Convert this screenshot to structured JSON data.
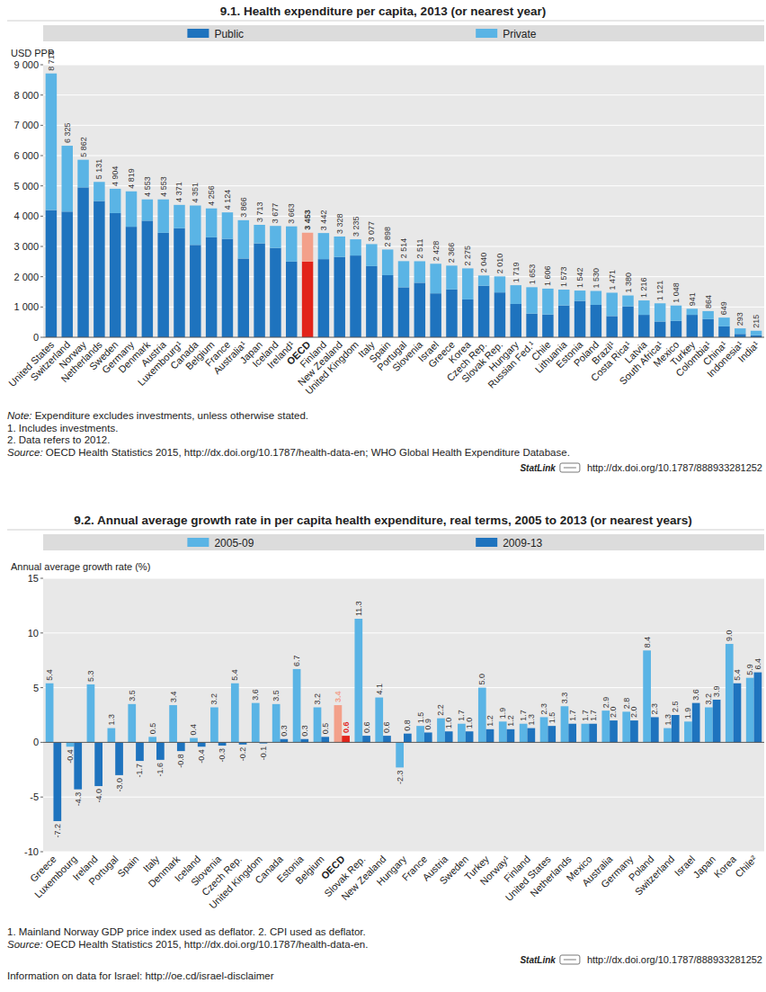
{
  "chart_data": [
    {
      "type": "bar",
      "title": "9.1. Health expenditure per capita, 2013 (or nearest year)",
      "y_label": "USD PPP",
      "categories": [
        "United States",
        "Switzerland",
        "Norway",
        "Netherlands",
        "Sweden",
        "Germany",
        "Denmark",
        "Austria",
        "Luxembourg¹",
        "Canada",
        "Belgium",
        "France",
        "Australia¹",
        "Japan",
        "Iceland",
        "Ireland¹",
        "OECD",
        "Finland",
        "New Zealand",
        "United Kingdom",
        "Italy",
        "Spain",
        "Portugal",
        "Slovenia",
        "Israel",
        "Greece",
        "Korea",
        "Czech Rep.",
        "Slovak Rep.",
        "Hungary",
        "Russian Fed.¹",
        "Chile",
        "Lithuania",
        "Estonia",
        "Poland",
        "Brazil¹",
        "Costa Rica¹",
        "Latvia",
        "South Africa¹",
        "Mexico",
        "Turkey",
        "Colombia¹",
        "China¹",
        "Indonesia¹",
        "India¹"
      ],
      "series": [
        {
          "name": "Public",
          "color": "#1e73be",
          "colors": [
            "#1e73be",
            "#1e73be",
            "#1e73be",
            "#1e73be",
            "#1e73be",
            "#1e73be",
            "#1e73be",
            "#1e73be",
            "#1e73be",
            "#1e73be",
            "#1e73be",
            "#1e73be",
            "#1e73be",
            "#1e73be",
            "#1e73be",
            "#1e73be",
            "#e2231a",
            "#1e73be",
            "#1e73be",
            "#1e73be",
            "#1e73be",
            "#1e73be",
            "#1e73be",
            "#1e73be",
            "#1e73be",
            "#1e73be",
            "#1e73be",
            "#1e73be",
            "#1e73be",
            "#1e73be",
            "#1e73be",
            "#1e73be",
            "#1e73be",
            "#1e73be",
            "#1e73be",
            "#1e73be",
            "#1e73be",
            "#1e73be",
            "#1e73be",
            "#1e73be",
            "#1e73be",
            "#1e73be",
            "#1e73be",
            "#1e73be",
            "#1e73be"
          ],
          "values": [
            4200,
            4150,
            4950,
            4500,
            4100,
            3650,
            3850,
            3450,
            3600,
            3050,
            3300,
            3250,
            2600,
            3100,
            2950,
            2500,
            2500,
            2580,
            2650,
            2700,
            2350,
            2050,
            1650,
            1800,
            1450,
            1580,
            1250,
            1700,
            1480,
            1100,
            780,
            750,
            1050,
            1200,
            1070,
            700,
            1020,
            740,
            520,
            540,
            740,
            600,
            360,
            110,
            65
          ]
        },
        {
          "name": "Private",
          "color": "#5ab4e5",
          "colors": [
            "#5ab4e5",
            "#5ab4e5",
            "#5ab4e5",
            "#5ab4e5",
            "#5ab4e5",
            "#5ab4e5",
            "#5ab4e5",
            "#5ab4e5",
            "#5ab4e5",
            "#5ab4e5",
            "#5ab4e5",
            "#5ab4e5",
            "#5ab4e5",
            "#5ab4e5",
            "#5ab4e5",
            "#5ab4e5",
            "#f3a08a",
            "#5ab4e5",
            "#5ab4e5",
            "#5ab4e5",
            "#5ab4e5",
            "#5ab4e5",
            "#5ab4e5",
            "#5ab4e5",
            "#5ab4e5",
            "#5ab4e5",
            "#5ab4e5",
            "#5ab4e5",
            "#5ab4e5",
            "#5ab4e5",
            "#5ab4e5",
            "#5ab4e5",
            "#5ab4e5",
            "#5ab4e5",
            "#5ab4e5",
            "#5ab4e5",
            "#5ab4e5",
            "#5ab4e5",
            "#5ab4e5",
            "#5ab4e5",
            "#5ab4e5",
            "#5ab4e5",
            "#5ab4e5",
            "#5ab4e5",
            "#5ab4e5"
          ],
          "values": [
            4513,
            2175,
            912,
            631,
            804,
            1169,
            703,
            1103,
            771,
            1301,
            956,
            874,
            1266,
            613,
            727,
            1163,
            953,
            862,
            678,
            535,
            727,
            848,
            864,
            711,
            978,
            786,
            1025,
            340,
            530,
            619,
            873,
            856,
            523,
            342,
            460,
            771,
            360,
            476,
            601,
            508,
            201,
            264,
            289,
            183,
            150
          ]
        }
      ],
      "totals": [
        8713,
        6325,
        5862,
        5131,
        4904,
        4819,
        4553,
        4553,
        4371,
        4351,
        4256,
        4124,
        3866,
        3713,
        3677,
        3663,
        3453,
        3442,
        3328,
        3235,
        3077,
        2898,
        2514,
        2511,
        2428,
        2366,
        2275,
        2040,
        2010,
        1719,
        1653,
        1606,
        1573,
        1542,
        1530,
        1471,
        1380,
        1216,
        1121,
        1048,
        941,
        864,
        649,
        293,
        215
      ],
      "total_labels": [
        "8 713",
        "6 325",
        "5 862",
        "5 131",
        "4 904",
        "4 819",
        "4 553",
        "4 553",
        "4 371",
        "4 351",
        "4 256",
        "4 124",
        "3 866",
        "3 713",
        "3 677",
        "3 663",
        "3 453",
        "3 442",
        "3 328",
        "3 235",
        "3 077",
        "2 898",
        "2 514",
        "2 511",
        "2 428",
        "2 366",
        "2 275",
        "2 040",
        "2 010",
        "1 719",
        "1 653",
        "1 606",
        "1 573",
        "1 542",
        "1 530",
        "1 471",
        "1 380",
        "1 216",
        "1 121",
        "1 048",
        "941",
        "864",
        "649",
        "293",
        "215"
      ],
      "stacked": true,
      "grid": true,
      "legend": "top",
      "ylim": [
        0,
        9000
      ],
      "yticks": [
        0,
        {
          "value": 1000,
          "label": "1 000"
        },
        {
          "value": 2000,
          "label": "2 000"
        },
        {
          "value": 3000,
          "label": "3 000"
        },
        {
          "value": 4000,
          "label": "4 000"
        },
        {
          "value": 5000,
          "label": "5 000"
        },
        {
          "value": 6000,
          "label": "6 000"
        },
        {
          "value": 7000,
          "label": "7 000"
        },
        {
          "value": 8000,
          "label": "8 000"
        },
        {
          "value": 9000,
          "label": "9 000"
        }
      ],
      "notes": [
        "Note: Expenditure excludes investments, unless otherwise stated.",
        "1. Includes investments.",
        "2. Data refers to 2012.",
        "Source: OECD Health Statistics 2015, http://dx.doi.org/10.1787/health-data-en; WHO Global Health Expenditure Database."
      ],
      "statlink": {
        "label": "StatLink",
        "url": "http://dx.doi.org/10.1787/888933281252"
      }
    },
    {
      "type": "bar",
      "title": "9.2. Annual average growth rate in per capita health expenditure, real terms, 2005 to 2013 (or nearest years)",
      "y_label": "Annual average growth rate (%)",
      "categories": [
        "Greece",
        "Luxembourg",
        "Ireland",
        "Portugal",
        "Spain",
        "Italy",
        "Denmark",
        "Iceland",
        "Slovenia",
        "Czech Rep.",
        "United Kingdom",
        "Canada",
        "Estonia",
        "Belgium",
        "OECD",
        "Slovak Rep.",
        "New Zealand",
        "Hungary",
        "France",
        "Austria",
        "Sweden",
        "Turkey",
        "Norway¹",
        "Finland",
        "United States",
        "Netherlands",
        "Mexico",
        "Australia",
        "Germany",
        "Poland",
        "Switzerland",
        "Israel",
        "Japan",
        "Korea",
        "Chile²"
      ],
      "series": [
        {
          "name": "2005-09",
          "color": "#5ab4e5",
          "colors": [
            "#5ab4e5",
            "#5ab4e5",
            "#5ab4e5",
            "#5ab4e5",
            "#5ab4e5",
            "#5ab4e5",
            "#5ab4e5",
            "#5ab4e5",
            "#5ab4e5",
            "#5ab4e5",
            "#5ab4e5",
            "#5ab4e5",
            "#5ab4e5",
            "#5ab4e5",
            "#f3a08a",
            "#5ab4e5",
            "#5ab4e5",
            "#5ab4e5",
            "#5ab4e5",
            "#5ab4e5",
            "#5ab4e5",
            "#5ab4e5",
            "#5ab4e5",
            "#5ab4e5",
            "#5ab4e5",
            "#5ab4e5",
            "#5ab4e5",
            "#5ab4e5",
            "#5ab4e5",
            "#5ab4e5",
            "#5ab4e5",
            "#5ab4e5",
            "#5ab4e5",
            "#5ab4e5",
            "#5ab4e5"
          ],
          "values": [
            5.4,
            -0.4,
            5.3,
            1.3,
            3.5,
            0.5,
            3.4,
            0.4,
            3.2,
            5.4,
            3.6,
            3.5,
            6.7,
            3.2,
            3.4,
            11.3,
            4.1,
            -2.3,
            1.5,
            2.2,
            1.7,
            5.0,
            1.9,
            1.7,
            2.3,
            3.3,
            1.7,
            2.9,
            2.8,
            8.4,
            1.3,
            1.9,
            3.2,
            9.0,
            5.9
          ],
          "value_labels": [
            "5.4",
            "-0.4",
            "5.3",
            "1.3",
            "3.5",
            "0.5",
            "3.4",
            "0.4",
            "3.2",
            "5.4",
            "3.6",
            "3.5",
            "6.7",
            "3.2",
            "3.4",
            "11.3",
            "4.1",
            "-2.3",
            "1.5",
            "2.2",
            "1.7",
            "5.0",
            "1.9",
            "1.7",
            "2.3",
            "3.3",
            "1.7",
            "2.9",
            "2.8",
            "8.4",
            "1.3",
            "1.9",
            "3.2",
            "9.0",
            "5.9"
          ]
        },
        {
          "name": "2009-13",
          "color": "#1e73be",
          "colors": [
            "#1e73be",
            "#1e73be",
            "#1e73be",
            "#1e73be",
            "#1e73be",
            "#1e73be",
            "#1e73be",
            "#1e73be",
            "#1e73be",
            "#1e73be",
            "#1e73be",
            "#1e73be",
            "#1e73be",
            "#1e73be",
            "#e2231a",
            "#1e73be",
            "#1e73be",
            "#1e73be",
            "#1e73be",
            "#1e73be",
            "#1e73be",
            "#1e73be",
            "#1e73be",
            "#1e73be",
            "#1e73be",
            "#1e73be",
            "#1e73be",
            "#1e73be",
            "#1e73be",
            "#1e73be",
            "#1e73be",
            "#1e73be",
            "#1e73be",
            "#1e73be",
            "#1e73be"
          ],
          "values": [
            -7.2,
            -4.3,
            -4.0,
            -3.0,
            -1.7,
            -1.6,
            -0.8,
            -0.4,
            -0.3,
            -0.2,
            -0.1,
            0.3,
            0.3,
            0.5,
            0.6,
            0.6,
            0.6,
            0.8,
            0.9,
            1.0,
            1.0,
            1.2,
            1.2,
            1.3,
            1.5,
            1.7,
            1.7,
            2.0,
            2.0,
            2.3,
            2.5,
            3.6,
            3.9,
            5.4,
            6.4
          ],
          "value_labels": [
            "-7.2",
            "-4.3",
            "-4.0",
            "-3.0",
            "-1.7",
            "-1.6",
            "-0.8",
            "-0.4",
            "-0.3",
            "-0.2",
            "-0.1",
            "0.3",
            "0.3",
            "0.5",
            "0.6",
            "0.6",
            "0.6",
            "0.8",
            "0.9",
            "1.0",
            "1.0",
            "1.2",
            "1.2",
            "1.3",
            "1.5",
            "1.7",
            "1.7",
            "2.0",
            "2.0",
            "2.3",
            "2.5",
            "3.6",
            "3.9",
            "5.4",
            "6.4"
          ]
        }
      ],
      "stacked": false,
      "grid": true,
      "legend": "top",
      "data_labels": true,
      "ylim": [
        -10,
        15
      ],
      "yticks": [
        -10,
        -5,
        0,
        5,
        10,
        15
      ],
      "notes": [
        "1. Mainland Norway GDP price index used as deflator. 2. CPI used as deflator.",
        "Source: OECD Health Statistics 2015, http://dx.doi.org/10.1787/health-data-en."
      ],
      "statlink": {
        "label": "StatLink",
        "url": "http://dx.doi.org/10.1787/888933281252"
      },
      "footer": "Information on data for Israel: http://oe.cd/israel-disclaimer"
    }
  ]
}
